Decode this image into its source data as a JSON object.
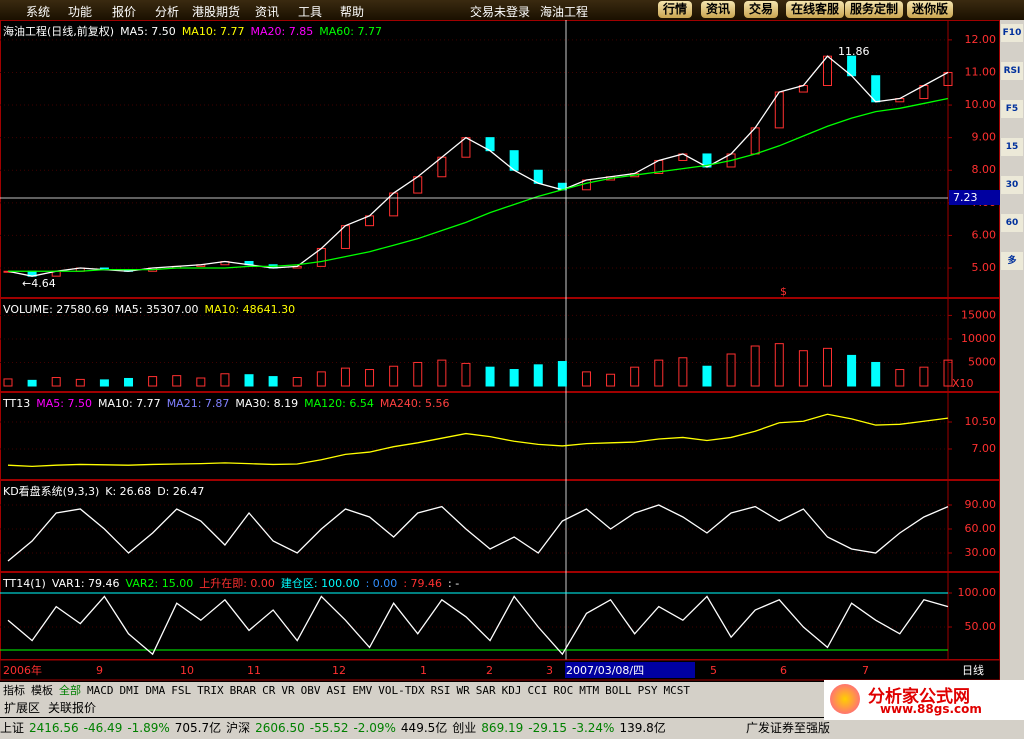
{
  "menu": [
    "系统",
    "功能",
    "报价",
    "分析",
    "港股期货",
    "资讯",
    "工具",
    "帮助"
  ],
  "title_bar": {
    "login": "交易未登录",
    "stock": "海油工程"
  },
  "top_buttons": [
    "行情",
    "资讯",
    "交易",
    "在线客服",
    "服务定制",
    "迷你版"
  ],
  "main": {
    "header": "海油工程(日线,前复权)",
    "legend": [
      {
        "text": "MA5: 7.50",
        "color": "#ffffff"
      },
      {
        "text": "MA10: 7.77",
        "color": "#ffff00"
      },
      {
        "text": "MA20: 7.85",
        "color": "#ff00ff"
      },
      {
        "text": "MA60: 7.77",
        "color": "#00ff00"
      }
    ],
    "ylim": [
      4.08,
      12.61
    ],
    "yticks": [
      {
        "value": 5,
        "label": "5.00"
      },
      {
        "value": 6,
        "label": "6.00"
      },
      {
        "value": 7,
        "label": "7.00"
      },
      {
        "value": 8,
        "label": "8.00"
      },
      {
        "value": 9,
        "label": "9.00"
      },
      {
        "value": 10,
        "label": "10.00"
      },
      {
        "value": 11,
        "label": "11.00"
      },
      {
        "value": 12,
        "label": "12.00"
      }
    ],
    "close": [
      4.9,
      4.75,
      4.9,
      5.0,
      4.95,
      4.9,
      5.0,
      5.05,
      5.1,
      5.2,
      5.1,
      5.0,
      5.05,
      5.6,
      6.3,
      6.6,
      7.3,
      7.8,
      8.4,
      9.0,
      8.6,
      8.0,
      7.6,
      7.4,
      7.7,
      7.8,
      7.9,
      8.3,
      8.5,
      8.1,
      8.5,
      9.3,
      10.4,
      10.6,
      11.5,
      10.9,
      10.1,
      10.2,
      10.6,
      11.0
    ],
    "ma60": [
      4.9,
      4.9,
      4.9,
      4.9,
      4.95,
      4.95,
      4.95,
      5.0,
      5.0,
      5.0,
      5.05,
      5.05,
      5.1,
      5.2,
      5.35,
      5.5,
      5.7,
      5.9,
      6.15,
      6.4,
      6.7,
      6.95,
      7.2,
      7.4,
      7.6,
      7.75,
      7.85,
      7.95,
      8.05,
      8.15,
      8.3,
      8.5,
      8.75,
      9.05,
      9.35,
      9.6,
      9.8,
      9.9,
      10.05,
      10.2
    ],
    "high_label": "11.86",
    "low_label": "←4.64",
    "price_tag": "7.23",
    "signal": "$"
  },
  "volume": {
    "legend": [
      {
        "text": "VOLUME: 27580.69",
        "color": "#ffffff"
      },
      {
        "text": "MA5: 35307.00",
        "color": "#ffffff"
      },
      {
        "text": "MA10: 48641.30",
        "color": "#ffff00"
      }
    ],
    "ylim": [
      0,
      18700
    ],
    "yticks": [
      5000,
      10000,
      15000
    ],
    "values": [
      1500,
      1200,
      1800,
      1400,
      1300,
      1600,
      2000,
      2200,
      1700,
      2600,
      2400,
      2000,
      1800,
      3000,
      3800,
      3500,
      4200,
      5000,
      5500,
      4800,
      4000,
      3500,
      4500,
      5200,
      3000,
      2500,
      4000,
      5500,
      6000,
      4200,
      6800,
      8500,
      9000,
      7500,
      8000,
      6500,
      5000,
      3500,
      4000,
      5500
    ],
    "scale_label": "X10"
  },
  "tt13": {
    "legend": [
      {
        "text": "TT13",
        "color": "#ffffff"
      },
      {
        "text": "MA5: 7.50",
        "color": "#ff00ff"
      },
      {
        "text": "MA10: 7.77",
        "color": "#ffffff"
      },
      {
        "text": "MA21: 7.87",
        "color": "#8080ff"
      },
      {
        "text": "MA30: 8.19",
        "color": "#ffffff"
      },
      {
        "text": "MA120: 6.54",
        "color": "#00ff00"
      },
      {
        "text": "MA240: 5.56",
        "color": "#ff4040"
      }
    ],
    "ylim": [
      2.98,
      14.39
    ],
    "yticks": [
      {
        "value": 7,
        "label": "7.00"
      },
      {
        "value": 10.5,
        "label": "10.50"
      }
    ]
  },
  "kd": {
    "legend": [
      {
        "text": "KD看盘系统(9,3,3)",
        "color": "#ffffff"
      },
      {
        "text": "K: 26.68",
        "color": "#ffffff"
      },
      {
        "text": "D: 26.47",
        "color": "#ffffff"
      }
    ],
    "ylim": [
      6.25,
      121.25
    ],
    "yticks": [
      {
        "value": 30,
        "label": "30.00"
      },
      {
        "value": 60,
        "label": "60.00"
      },
      {
        "value": 90,
        "label": "90.00"
      }
    ],
    "k": [
      20,
      45,
      80,
      85,
      60,
      30,
      55,
      85,
      70,
      40,
      80,
      45,
      30,
      60,
      85,
      75,
      50,
      80,
      88,
      60,
      35,
      50,
      30,
      70,
      85,
      60,
      80,
      90,
      75,
      55,
      80,
      88,
      70,
      85,
      50,
      35,
      30,
      55,
      75,
      88
    ]
  },
  "tt14": {
    "legend": [
      {
        "text": "TT14(1)",
        "color": "#ffffff"
      },
      {
        "text": "VAR1: 79.46",
        "color": "#ffffff"
      },
      {
        "text": "VAR2: 15.00",
        "color": "#00ff00"
      },
      {
        "text": "上升在即: 0.00",
        "color": "#ff3030"
      },
      {
        "text": "建仓区: 100.00",
        "color": "#00ffff"
      },
      {
        "text": ": 0.00",
        "color": "#3090ff"
      },
      {
        "text": ": 79.46",
        "color": "#ff3030"
      },
      {
        "text": ": -",
        "color": "#ffffff"
      }
    ],
    "ylim": [
      1.47,
      130.9
    ],
    "yticks": [
      {
        "value": 50,
        "label": "50.00"
      },
      {
        "value": 100,
        "label": "100.00"
      }
    ],
    "var1": [
      60,
      30,
      80,
      55,
      95,
      40,
      10,
      85,
      60,
      90,
      45,
      75,
      30,
      95,
      60,
      20,
      85,
      40,
      90,
      65,
      30,
      95,
      50,
      10,
      70,
      90,
      40,
      80,
      60,
      95,
      35,
      75,
      90,
      50,
      20,
      85,
      60,
      40,
      90,
      80
    ]
  },
  "date_axis": {
    "labels": [
      "2006年",
      "9",
      "10",
      "11",
      "12",
      "1",
      "2",
      "3",
      "2007/03/08/四",
      "5",
      "6",
      "7"
    ],
    "period": "日线"
  },
  "tabs": [
    "指标",
    "模板",
    "全部",
    "MACD",
    "DMI",
    "DMA",
    "FSL",
    "TRIX",
    "BRAR",
    "CR",
    "VR",
    "OBV",
    "ASI",
    "EMV",
    "VOL-TDX",
    "RSI",
    "WR",
    "SAR",
    "KDJ",
    "CCI",
    "ROC",
    "MTM",
    "BOLL",
    "PSY",
    "MCST"
  ],
  "bottom_tabs": [
    "扩展区",
    "关联报价"
  ],
  "status": [
    {
      "text": "上证",
      "color": "#000000"
    },
    {
      "text": "2416.56",
      "color": "#008000"
    },
    {
      "text": "-46.49",
      "color": "#008000"
    },
    {
      "text": "-1.89%",
      "color": "#008000"
    },
    {
      "text": "705.7亿",
      "color": "#000000"
    },
    {
      "text": "沪深",
      "color": "#000000"
    },
    {
      "text": "2606.50",
      "color": "#008000"
    },
    {
      "text": "-55.52",
      "color": "#008000"
    },
    {
      "text": "-2.09%",
      "color": "#008000"
    },
    {
      "text": "449.5亿",
      "color": "#000000"
    },
    {
      "text": "创业",
      "color": "#000000"
    },
    {
      "text": "869.19",
      "color": "#008000"
    },
    {
      "text": "-29.15",
      "color": "#008000"
    },
    {
      "text": "-3.24%",
      "color": "#008000"
    },
    {
      "text": "139.8亿",
      "color": "#000000"
    }
  ],
  "broker": "广发证券至强版",
  "logo": {
    "name": "分析家公式网",
    "url": "www.88gs.com"
  },
  "toolbar": [
    "F10",
    "RSI",
    "F5",
    "15",
    "30",
    "60",
    "多"
  ]
}
